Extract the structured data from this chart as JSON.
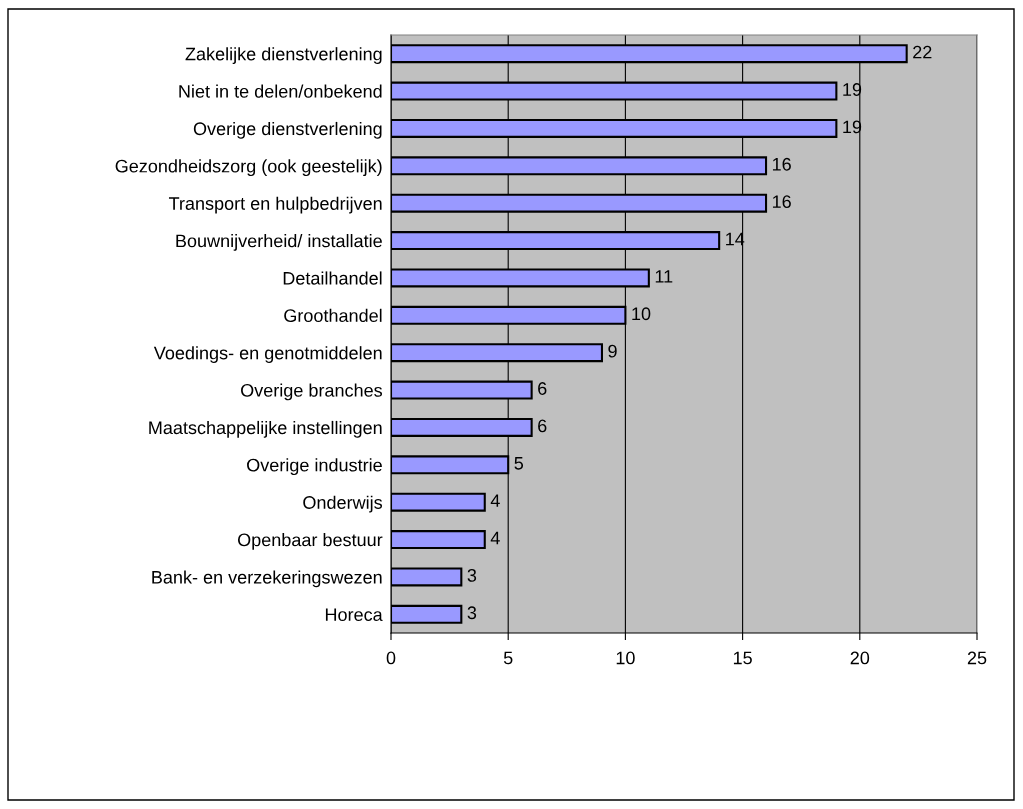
{
  "chart_data": {
    "type": "bar",
    "orientation": "horizontal",
    "categories": [
      "Zakelijke dienstverlening",
      "Niet in te delen/onbekend",
      "Overige dienstverlening",
      "Gezondheidszorg (ook geestelijk)",
      "Transport en hulpbedrijven",
      "Bouwnijverheid/ installatie",
      "Detailhandel",
      "Groothandel",
      "Voedings- en genotmiddelen",
      "Overige branches",
      "Maatschappelijke instellingen",
      "Overige industrie",
      "Onderwijs",
      "Openbaar bestuur",
      "Bank- en verzekeringswezen",
      "Horeca"
    ],
    "values": [
      22,
      19,
      19,
      16,
      16,
      14,
      11,
      10,
      9,
      6,
      6,
      5,
      4,
      4,
      3,
      3
    ],
    "color": "#9999ff",
    "xlim": [
      0,
      25
    ],
    "xticks": [
      0,
      5,
      10,
      15,
      20,
      25
    ],
    "grid": "x",
    "data_labels": true,
    "legend": false
  }
}
